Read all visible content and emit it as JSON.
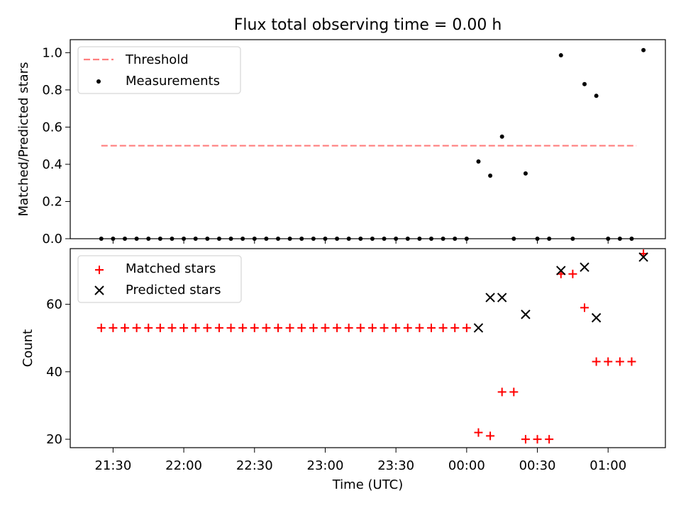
{
  "chart_data": [
    {
      "type": "scatter",
      "title": "Flux total observing time = 0.00 h",
      "xlabel": "",
      "ylabel": "Matched/Predicted stars",
      "ylim": [
        0.0,
        1.07
      ],
      "y_ticks": [
        0.0,
        0.2,
        0.4,
        0.6,
        0.8,
        1.0
      ],
      "y_tick_labels": [
        "0.0",
        "0.2",
        "0.4",
        "0.6",
        "0.8",
        "1.0"
      ],
      "x_tick_labels_shown": false,
      "legend": {
        "position": "upper left",
        "entries": [
          "Threshold",
          "Measurements"
        ]
      },
      "series": [
        {
          "name": "Threshold",
          "kind": "dashed-line",
          "color": "#ff7f7f",
          "x": [
            "21:25",
            "01:12"
          ],
          "y": [
            0.5,
            0.5
          ]
        },
        {
          "name": "Measurements",
          "kind": "points",
          "color": "#000000",
          "x": [
            "21:25",
            "21:30",
            "21:35",
            "21:40",
            "21:45",
            "21:50",
            "21:55",
            "22:00",
            "22:05",
            "22:10",
            "22:15",
            "22:20",
            "22:25",
            "22:30",
            "22:35",
            "22:40",
            "22:45",
            "22:50",
            "22:55",
            "23:00",
            "23:05",
            "23:10",
            "23:15",
            "23:20",
            "23:25",
            "23:30",
            "23:35",
            "23:40",
            "23:45",
            "23:50",
            "23:55",
            "00:00",
            "00:05",
            "00:10",
            "00:15",
            "00:20",
            "00:25",
            "00:30",
            "00:35",
            "00:40",
            "00:45",
            "00:50",
            "00:55",
            "01:00",
            "01:05",
            "01:10",
            "01:15"
          ],
          "y": [
            0,
            0,
            0,
            0,
            0,
            0,
            0,
            0,
            0,
            0,
            0,
            0,
            0,
            0,
            0,
            0,
            0,
            0,
            0,
            0,
            0,
            0,
            0,
            0,
            0,
            0,
            0,
            0,
            0,
            0,
            0,
            0,
            0.415,
            0.339,
            0.549,
            0,
            0.351,
            0,
            0,
            0.986,
            0,
            0.831,
            0.768,
            0,
            0,
            0,
            1.014
          ]
        }
      ]
    },
    {
      "type": "scatter",
      "title": "",
      "xlabel": "Time (UTC)",
      "ylabel": "Count",
      "ylim": [
        17.5,
        76.5
      ],
      "y_ticks": [
        20,
        40,
        60
      ],
      "y_tick_labels": [
        "20",
        "40",
        "60"
      ],
      "x_ticks": [
        "21:30",
        "22:00",
        "22:30",
        "23:00",
        "23:30",
        "00:00",
        "00:30",
        "01:00"
      ],
      "legend": {
        "position": "upper left",
        "entries": [
          "Matched stars",
          "Predicted stars"
        ]
      },
      "series": [
        {
          "name": "Matched stars",
          "marker": "plus",
          "color": "#ff0000",
          "x": [
            "21:25",
            "21:30",
            "21:35",
            "21:40",
            "21:45",
            "21:50",
            "21:55",
            "22:00",
            "22:05",
            "22:10",
            "22:15",
            "22:20",
            "22:25",
            "22:30",
            "22:35",
            "22:40",
            "22:45",
            "22:50",
            "22:55",
            "23:00",
            "23:05",
            "23:10",
            "23:15",
            "23:20",
            "23:25",
            "23:30",
            "23:35",
            "23:40",
            "23:45",
            "23:50",
            "23:55",
            "00:00",
            "00:05",
            "00:10",
            "00:15",
            "00:20",
            "00:25",
            "00:30",
            "00:35",
            "00:40",
            "00:45",
            "00:50",
            "00:55",
            "01:00",
            "01:05",
            "01:10",
            "01:15"
          ],
          "y": [
            53,
            53,
            53,
            53,
            53,
            53,
            53,
            53,
            53,
            53,
            53,
            53,
            53,
            53,
            53,
            53,
            53,
            53,
            53,
            53,
            53,
            53,
            53,
            53,
            53,
            53,
            53,
            53,
            53,
            53,
            53,
            53,
            22,
            21,
            34,
            34,
            20,
            20,
            20,
            69,
            69,
            59,
            43,
            43,
            43,
            43,
            75
          ]
        },
        {
          "name": "Predicted stars",
          "marker": "x",
          "color": "#000000",
          "x": [
            "00:05",
            "00:10",
            "00:15",
            "00:25",
            "00:40",
            "00:50",
            "00:55",
            "01:15"
          ],
          "y": [
            53,
            62,
            62,
            57,
            70,
            71,
            56,
            74
          ]
        }
      ]
    }
  ]
}
